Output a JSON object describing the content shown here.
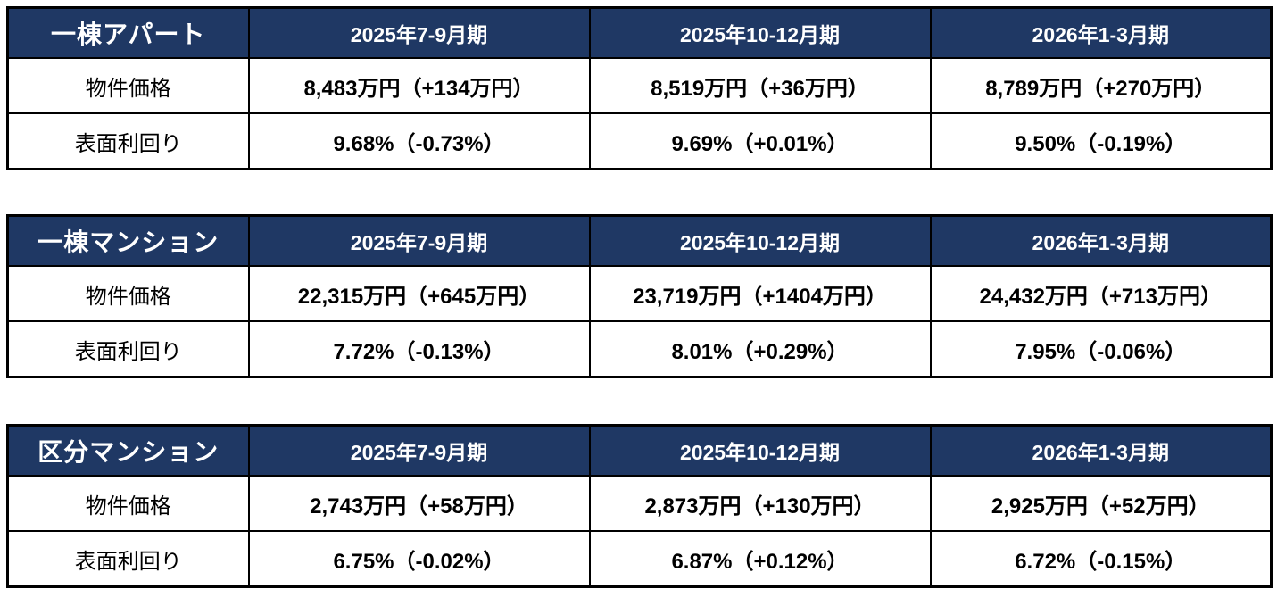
{
  "style": {
    "header_bg": "#1F3864",
    "header_text_color": "#ffffff",
    "border_color": "#000000",
    "value_text_color": "#000000"
  },
  "tables": [
    {
      "title": "一棟アパート",
      "columns": [
        "2025年7-9月期",
        "2025年10-12月期",
        "2026年1-3月期"
      ],
      "rows": [
        {
          "label": "物件価格",
          "values": [
            "8,483万円（+134万円）",
            "8,519万円（+36万円）",
            "8,789万円（+270万円）"
          ]
        },
        {
          "label": "表面利回り",
          "values": [
            "9.68%（-0.73%）",
            "9.69%（+0.01%）",
            "9.50%（-0.19%）"
          ]
        }
      ]
    },
    {
      "title": "一棟マンション",
      "columns": [
        "2025年7-9月期",
        "2025年10-12月期",
        "2026年1-3月期"
      ],
      "rows": [
        {
          "label": "物件価格",
          "values": [
            "22,315万円（+645万円）",
            "23,719万円（+1404万円）",
            "24,432万円（+713万円）"
          ]
        },
        {
          "label": "表面利回り",
          "values": [
            "7.72%（-0.13%）",
            "8.01%（+0.29%）",
            "7.95%（-0.06%）"
          ]
        }
      ]
    },
    {
      "title": "区分マンション",
      "columns": [
        "2025年7-9月期",
        "2025年10-12月期",
        "2026年1-3月期"
      ],
      "rows": [
        {
          "label": "物件価格",
          "values": [
            "2,743万円（+58万円）",
            "2,873万円（+130万円）",
            "2,925万円（+52万円）"
          ]
        },
        {
          "label": "表面利回り",
          "values": [
            "6.75%（-0.02%）",
            "6.87%（+0.12%）",
            "6.72%（-0.15%）"
          ]
        }
      ]
    }
  ],
  "chart_data": [
    {
      "type": "table",
      "title": "一棟アパート",
      "columns": [
        "2025年7-9月期",
        "2025年10-12月期",
        "2026年1-3月期"
      ],
      "rows": [
        [
          "物件価格",
          "8,483万円（+134万円）",
          "8,519万円（+36万円）",
          "8,789万円（+270万円）"
        ],
        [
          "表面利回り",
          "9.68%（-0.73%）",
          "9.69%（+0.01%）",
          "9.50%（-0.19%）"
        ]
      ]
    },
    {
      "type": "table",
      "title": "一棟マンション",
      "columns": [
        "2025年7-9月期",
        "2025年10-12月期",
        "2026年1-3月期"
      ],
      "rows": [
        [
          "物件価格",
          "22,315万円（+645万円）",
          "23,719万円（+1404万円）",
          "24,432万円（+713万円）"
        ],
        [
          "表面利回り",
          "7.72%（-0.13%）",
          "8.01%（+0.29%）",
          "7.95%（-0.06%）"
        ]
      ]
    },
    {
      "type": "table",
      "title": "区分マンション",
      "columns": [
        "2025年7-9月期",
        "2025年10-12月期",
        "2026年1-3月期"
      ],
      "rows": [
        [
          "物件価格",
          "2,743万円（+58万円）",
          "2,873万円（+130万円）",
          "2,925万円（+52万円）"
        ],
        [
          "表面利回り",
          "6.75%（-0.02%）",
          "6.87%（+0.12%）",
          "6.72%（-0.15%）"
        ]
      ]
    }
  ]
}
